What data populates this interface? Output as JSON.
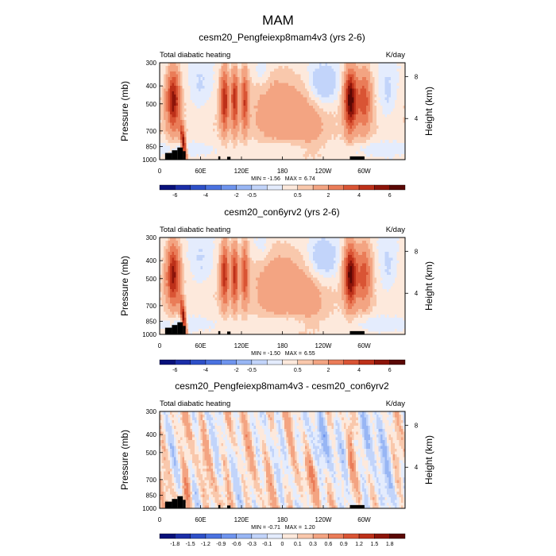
{
  "figure": {
    "title": "MAM",
    "colors": {
      "land": "#000000",
      "frame": "#000000",
      "background": "#ffffff"
    }
  },
  "chart_data": [
    {
      "type": "heatmap",
      "title": "cesm20_Pengfeiexp8mam4v3 (yrs 2-6)",
      "left_label": "Total diabatic heating",
      "right_label": "K/day",
      "ylabel": "Pressure (mb)",
      "ylabel_right": "Height (km)",
      "y_ticks": [
        300,
        400,
        500,
        700,
        850,
        1000
      ],
      "y_ticks_right": [
        "8",
        "4"
      ],
      "x_ticks": [
        "0",
        "60E",
        "120E",
        "180",
        "120W",
        "60W"
      ],
      "x_range_deg": [
        0,
        360
      ],
      "y_range_mb": [
        1000,
        300
      ],
      "y_scale": "log",
      "min": "-1.56",
      "max": "6.74",
      "min_label": "MIN =",
      "max_label": "MAX =",
      "colorbar": {
        "labels": [
          "-6",
          "-4",
          "-2",
          "-0.5",
          "0.5",
          "2",
          "4",
          "6"
        ],
        "colors": [
          "#08107a",
          "#1b2ea8",
          "#2e50c8",
          "#4a72e0",
          "#6e94ee",
          "#98b6f4",
          "#c2d4fa",
          "#e4ecfd",
          "#fde9dc",
          "#f9c8ac",
          "#f3a482",
          "#ea7c58",
          "#d95434",
          "#bd3019",
          "#8c1409",
          "#5a0805"
        ]
      }
    },
    {
      "type": "heatmap",
      "title": "cesm20_con6yrv2 (yrs 2-6)",
      "left_label": "Total diabatic heating",
      "right_label": "K/day",
      "ylabel": "Pressure (mb)",
      "ylabel_right": "Height (km)",
      "y_ticks": [
        300,
        400,
        500,
        700,
        850,
        1000
      ],
      "y_ticks_right": [
        "8",
        "4"
      ],
      "x_ticks": [
        "0",
        "60E",
        "120E",
        "180",
        "120W",
        "60W"
      ],
      "x_range_deg": [
        0,
        360
      ],
      "y_range_mb": [
        1000,
        300
      ],
      "y_scale": "log",
      "min": "-1.50",
      "max": "6.55",
      "min_label": "MIN =",
      "max_label": "MAX =",
      "colorbar": {
        "labels": [
          "-6",
          "-4",
          "-2",
          "-0.5",
          "0.5",
          "2",
          "4",
          "6"
        ],
        "colors": [
          "#08107a",
          "#1b2ea8",
          "#2e50c8",
          "#4a72e0",
          "#6e94ee",
          "#98b6f4",
          "#c2d4fa",
          "#e4ecfd",
          "#fde9dc",
          "#f9c8ac",
          "#f3a482",
          "#ea7c58",
          "#d95434",
          "#bd3019",
          "#8c1409",
          "#5a0805"
        ]
      }
    },
    {
      "type": "heatmap",
      "title": "cesm20_Pengfeiexp8mam4v3 - cesm20_con6yrv2",
      "left_label": "Total diabatic heating",
      "right_label": "K/day",
      "ylabel": "Pressure (mb)",
      "ylabel_right": "Height (km)",
      "y_ticks": [
        300,
        400,
        500,
        700,
        850,
        1000
      ],
      "y_ticks_right": [
        "8",
        "4"
      ],
      "x_ticks": [
        "0",
        "60E",
        "120E",
        "180",
        "120W",
        "60W"
      ],
      "x_range_deg": [
        0,
        360
      ],
      "y_range_mb": [
        1000,
        300
      ],
      "y_scale": "log",
      "min": "-0.71",
      "max": "1.20",
      "min_label": "MIN =",
      "max_label": "MAX =",
      "colorbar": {
        "labels": [
          "-1.8",
          "-1.5",
          "-1.2",
          "-0.9",
          "-0.6",
          "-0.3",
          "-0.1",
          "0",
          "0.1",
          "0.3",
          "0.6",
          "0.9",
          "1.2",
          "1.5",
          "1.8"
        ],
        "colors": [
          "#08107a",
          "#1b2ea8",
          "#2e50c8",
          "#4a72e0",
          "#6e94ee",
          "#98b6f4",
          "#c2d4fa",
          "#e4ecfd",
          "#fde9dc",
          "#f9c8ac",
          "#f3a482",
          "#ea7c58",
          "#d95434",
          "#bd3019",
          "#8c1409",
          "#5a0805"
        ]
      }
    }
  ]
}
